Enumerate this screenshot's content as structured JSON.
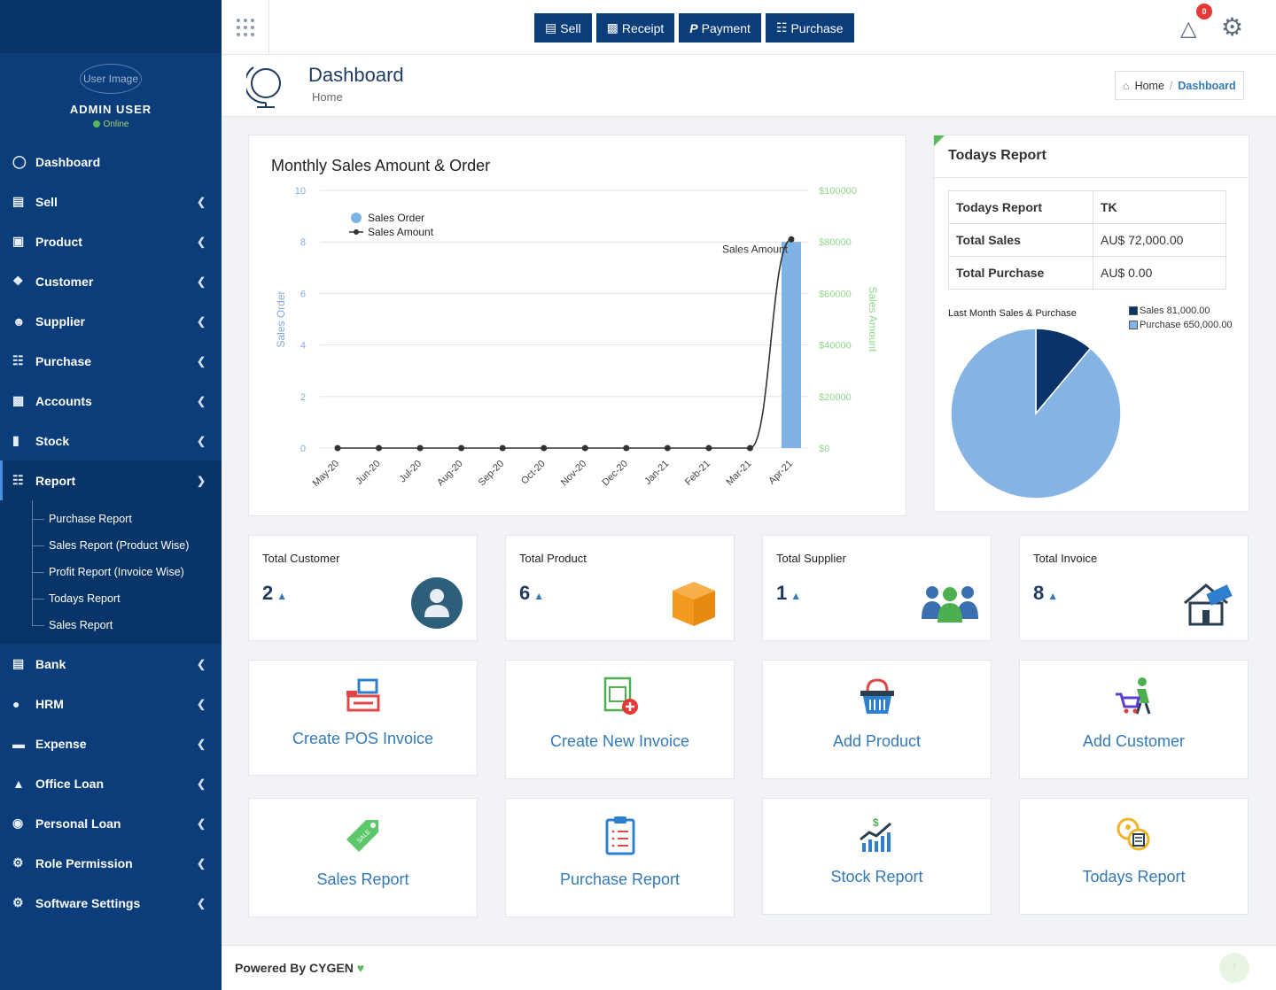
{
  "sidebar": {
    "user_image_alt": "User Image",
    "user_name": "ADMIN USER",
    "user_status": "Online",
    "items": [
      {
        "label": "Dashboard",
        "icon": "dashboard-icon"
      },
      {
        "label": "Sell",
        "icon": "sell-icon"
      },
      {
        "label": "Product",
        "icon": "product-icon"
      },
      {
        "label": "Customer",
        "icon": "handshake-icon"
      },
      {
        "label": "Supplier",
        "icon": "user-icon"
      },
      {
        "label": "Purchase",
        "icon": "cart-icon"
      },
      {
        "label": "Accounts",
        "icon": "money-icon"
      },
      {
        "label": "Stock",
        "icon": "bar-chart-icon"
      },
      {
        "label": "Report",
        "icon": "book-icon"
      },
      {
        "label": "Bank",
        "icon": "bank-icon"
      },
      {
        "label": "HRM",
        "icon": "person-icon"
      },
      {
        "label": "Expense",
        "icon": "credit-card-icon"
      },
      {
        "label": "Office Loan",
        "icon": "institution-icon"
      },
      {
        "label": "Personal Loan",
        "icon": "user-circle-icon"
      },
      {
        "label": "Role Permission",
        "icon": "gear-icon"
      },
      {
        "label": "Software Settings",
        "icon": "gear-icon"
      }
    ],
    "report_submenu": [
      "Purchase Report",
      "Sales Report (Product Wise)",
      "Profit Report (Invoice Wise)",
      "Todays Report",
      "Sales Report"
    ]
  },
  "topbar": {
    "buttons": [
      "Sell",
      "Receipt",
      "Payment",
      "Purchase"
    ],
    "alert_count": "0"
  },
  "page_header": {
    "title": "Dashboard",
    "subtitle": "Home",
    "breadcrumb_home": "Home",
    "breadcrumb_sep": "/",
    "breadcrumb_active": "Dashboard"
  },
  "chart_data": {
    "type": "bar",
    "title": "Monthly Sales Amount & Order",
    "categories": [
      "May-20",
      "Jun-20",
      "Jul-20",
      "Aug-20",
      "Sep-20",
      "Oct-20",
      "Nov-20",
      "Dec-20",
      "Jan-21",
      "Feb-21",
      "Mar-21",
      "Apr-21"
    ],
    "series": [
      {
        "name": "Sales Order",
        "type": "bar",
        "axis": "left",
        "color": "#7fb2e5",
        "values": [
          0,
          0,
          0,
          0,
          0,
          0,
          0,
          0,
          0,
          0,
          0,
          8
        ]
      },
      {
        "name": "Sales Amount",
        "type": "line",
        "axis": "right",
        "color": "#333333",
        "values": [
          0,
          0,
          0,
          0,
          0,
          0,
          0,
          0,
          0,
          0,
          0,
          81000
        ]
      }
    ],
    "ylabel": "Sales Order",
    "ylabel_right": "Sales Amount",
    "ylim": [
      0,
      10
    ],
    "ylim_right": [
      0,
      100000
    ],
    "yticks": [
      "0",
      "2",
      "4",
      "6",
      "8",
      "10"
    ],
    "yticks_right": [
      "$0",
      "$20000",
      "$40000",
      "$60000",
      "$80000",
      "$100000"
    ],
    "annotation": "Sales Amount",
    "legend": "top-left",
    "grid": true
  },
  "todays_report": {
    "title": "Todays Report",
    "rows": [
      {
        "label": "Todays Report",
        "value": "TK"
      },
      {
        "label": "Total Sales",
        "value": "AU$ 72,000.00"
      },
      {
        "label": "Total Purchase",
        "value": "AU$ 0.00"
      }
    ],
    "pie": {
      "title": "Last Month Sales & Purchase",
      "slices": [
        {
          "label": "Sales 81,000.00",
          "value": 81000,
          "color": "#0a3468"
        },
        {
          "label": "Purchase 650,000.00",
          "value": 650000,
          "color": "#85b3e3"
        }
      ]
    }
  },
  "stats": [
    {
      "label": "Total Customer",
      "value": "2",
      "icon": "customer-avatar-icon"
    },
    {
      "label": "Total Product",
      "value": "6",
      "icon": "box-icon"
    },
    {
      "label": "Total Supplier",
      "value": "1",
      "icon": "group-icon"
    },
    {
      "label": "Total Invoice",
      "value": "8",
      "icon": "house-sell-icon"
    }
  ],
  "actions": [
    {
      "label": "Create POS Invoice",
      "icon": "pos-icon"
    },
    {
      "label": "Create New Invoice",
      "icon": "invoice-add-icon"
    },
    {
      "label": "Add Product",
      "icon": "basket-icon"
    },
    {
      "label": "Add Customer",
      "icon": "shopper-icon"
    },
    {
      "label": "Sales Report",
      "icon": "sale-tag-icon"
    },
    {
      "label": "Purchase Report",
      "icon": "clipboard-icon"
    },
    {
      "label": "Stock Report",
      "icon": "stock-chart-icon"
    },
    {
      "label": "Todays Report",
      "icon": "coins-doc-icon"
    }
  ],
  "footer": {
    "text": "Powered By CYGEN"
  }
}
